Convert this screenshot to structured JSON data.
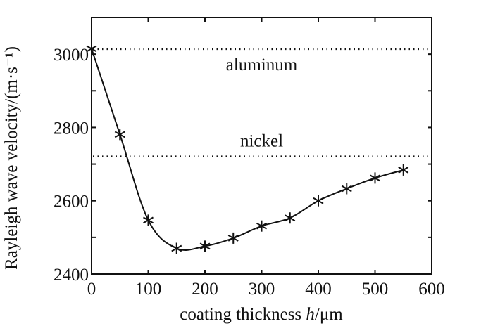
{
  "chart_data": {
    "type": "line",
    "title": "",
    "xlabel": "coating thickness h/μm",
    "xlabel_parts": {
      "pre": "coating thickness ",
      "italic": "h",
      "post": "/μm"
    },
    "ylabel": "Rayleigh  wave velocity/(m·s⁻¹)",
    "xlim": [
      0,
      600
    ],
    "ylim": [
      2400,
      3100
    ],
    "xticks": [
      0,
      100,
      200,
      300,
      400,
      500,
      600
    ],
    "yticks": [
      2400,
      2600,
      2800,
      3000
    ],
    "grid": false,
    "series": [
      {
        "name": "Rayleigh wave velocity",
        "marker": "asterisk",
        "x": [
          0,
          50,
          100,
          150,
          200,
          250,
          300,
          350,
          400,
          450,
          500,
          550
        ],
        "y": [
          3015,
          2781,
          2547,
          2470,
          2476,
          2498,
          2531,
          2553,
          2600,
          2633,
          2662,
          2684
        ]
      }
    ],
    "reference_lines": [
      {
        "label": "aluminum",
        "y": 3014,
        "label_x": 300
      },
      {
        "label": "nickel",
        "y": 2721,
        "label_x": 300
      }
    ]
  }
}
